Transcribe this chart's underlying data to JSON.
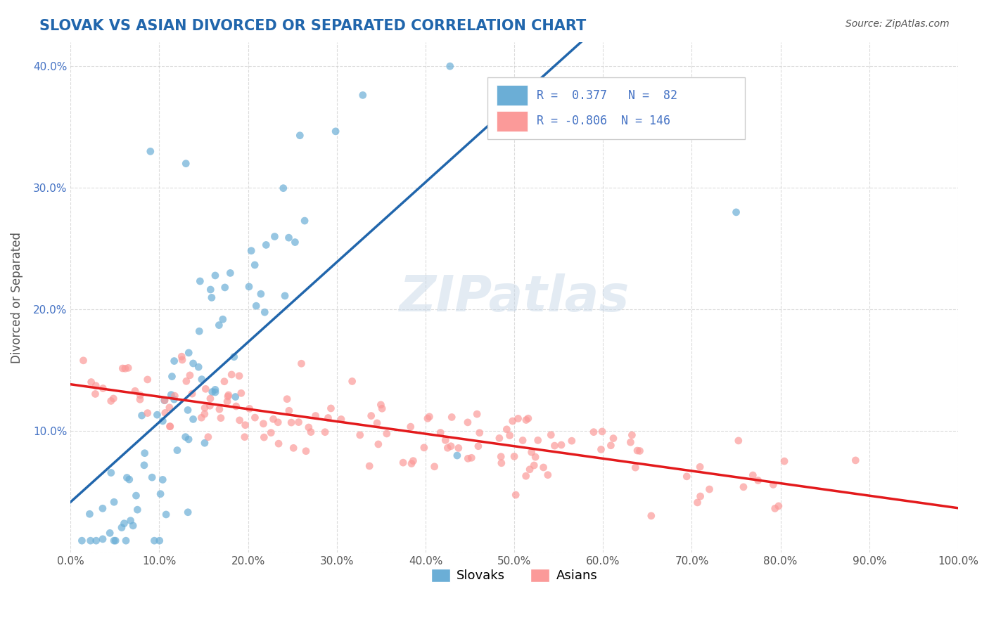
{
  "title": "SLOVAK VS ASIAN DIVORCED OR SEPARATED CORRELATION CHART",
  "source_text": "Source: ZipAtlas.com",
  "xlabel": "",
  "ylabel": "Divorced or Separated",
  "legend_label1": "Slovaks",
  "legend_label2": "Asians",
  "r1": 0.377,
  "n1": 82,
  "r2": -0.806,
  "n2": 146,
  "color_slovak": "#6baed6",
  "color_asian": "#fb9a99",
  "color_line_slovak": "#2166ac",
  "color_line_asian": "#e31a1c",
  "color_line_ext": "#aaaaaa",
  "watermark": "ZIPatlas",
  "xlim": [
    0.0,
    1.0
  ],
  "ylim": [
    0.0,
    0.42
  ],
  "xticks": [
    0.0,
    0.1,
    0.2,
    0.3,
    0.4,
    0.5,
    0.6,
    0.7,
    0.8,
    0.9,
    1.0
  ],
  "yticks": [
    0.0,
    0.1,
    0.2,
    0.3,
    0.4
  ],
  "ytick_labels": [
    "",
    "10.0%",
    "20.0%",
    "30.0%",
    "40.0%"
  ],
  "xtick_labels": [
    "0.0%",
    "10.0%",
    "20.0%",
    "30.0%",
    "40.0%",
    "50.0%",
    "60.0%",
    "70.0%",
    "80.0%",
    "90.0%",
    "100.0%"
  ],
  "background_color": "#ffffff",
  "grid_color": "#cccccc",
  "title_color": "#2166ac",
  "label_color": "#555555"
}
